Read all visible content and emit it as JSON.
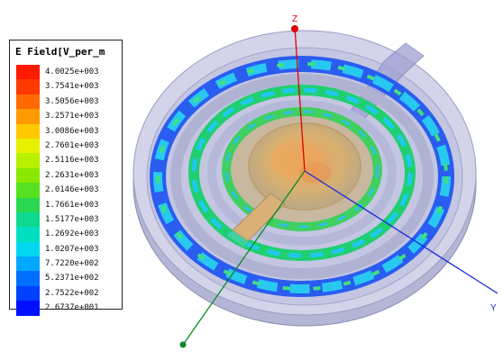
{
  "legend": {
    "title": "E Field[V_per_m",
    "entries": [
      {
        "value": "4.0025e+003",
        "color": "#ff1a00"
      },
      {
        "value": "3.7541e+003",
        "color": "#ff3a00"
      },
      {
        "value": "3.5056e+003",
        "color": "#ff6a00"
      },
      {
        "value": "3.2571e+003",
        "color": "#ff9a00"
      },
      {
        "value": "3.0086e+003",
        "color": "#ffc800"
      },
      {
        "value": "2.7601e+003",
        "color": "#e8f000"
      },
      {
        "value": "2.5116e+003",
        "color": "#b8f000"
      },
      {
        "value": "2.2631e+003",
        "color": "#88e800"
      },
      {
        "value": "2.0146e+003",
        "color": "#55e020"
      },
      {
        "value": "1.7661e+003",
        "color": "#2ad850"
      },
      {
        "value": "1.5177e+003",
        "color": "#10d890"
      },
      {
        "value": "1.2692e+003",
        "color": "#00e0c0"
      },
      {
        "value": "1.0207e+003",
        "color": "#00d8f0"
      },
      {
        "value": "7.7220e+002",
        "color": "#00a8ff"
      },
      {
        "value": "5.2371e+002",
        "color": "#0070ff"
      },
      {
        "value": "2.7522e+002",
        "color": "#0040ff"
      },
      {
        "value": "2.6737e+001",
        "color": "#0010ff"
      }
    ]
  },
  "axes": {
    "z_label": "Z",
    "y_label": "Y",
    "z_color": "#e00000",
    "y_color": "#1a2ad8",
    "x_color": "#0a8a20"
  }
}
